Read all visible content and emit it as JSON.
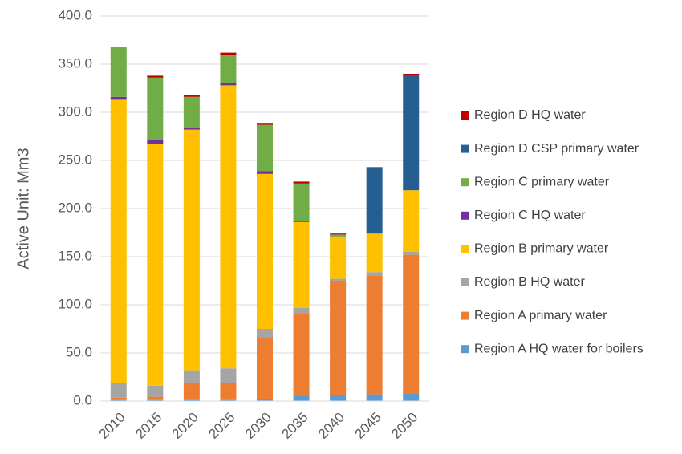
{
  "chart_data": {
    "type": "stacked_bar",
    "y_label": "Active Unit: Mm3",
    "categories": [
      "2010",
      "2015",
      "2020",
      "2025",
      "2030",
      "2035",
      "2040",
      "2045",
      "2050"
    ],
    "series": [
      {
        "name": "Region A HQ water for boilers",
        "color": "#5b9bd5",
        "values": [
          1,
          1,
          1,
          1,
          2,
          5,
          6,
          7,
          8
        ]
      },
      {
        "name": "Region A primary water",
        "color": "#ed7d31",
        "values": [
          2.5,
          3.5,
          18,
          18,
          63,
          85,
          119,
          123,
          144
        ]
      },
      {
        "name": "Region B HQ water",
        "color": "#a5a5a5",
        "values": [
          15.5,
          11.5,
          13,
          15,
          10,
          7,
          2,
          4,
          3
        ]
      },
      {
        "name": "Region B primary water",
        "color": "#ffc000",
        "values": [
          294,
          251,
          250,
          294,
          161,
          89,
          43,
          40,
          64
        ]
      },
      {
        "name": "Region C HQ water",
        "color": "#7030a0",
        "values": [
          3,
          4,
          2,
          2,
          3,
          1,
          1,
          0,
          0
        ]
      },
      {
        "name": "Region C primary water",
        "color": "#70ad47",
        "values": [
          52,
          65,
          32,
          30,
          48,
          39,
          2,
          0,
          0
        ]
      },
      {
        "name": "Region D CSP primary water",
        "color": "#255e91",
        "values": [
          0,
          0,
          0,
          0,
          0,
          0,
          0,
          68,
          120
        ]
      },
      {
        "name": "Region D HQ water",
        "color": "#c00000",
        "values": [
          0,
          2,
          2,
          2,
          2,
          2,
          1,
          1,
          1
        ]
      }
    ],
    "ylim": [
      0,
      400
    ],
    "yticks": [
      {
        "value": 0,
        "label": "0.0"
      },
      {
        "value": 50,
        "label": "50.0"
      },
      {
        "value": 100,
        "label": "100.0"
      },
      {
        "value": 150,
        "label": "150.0"
      },
      {
        "value": 200,
        "label": "200.0"
      },
      {
        "value": 250,
        "label": "250.0"
      },
      {
        "value": 300,
        "label": "300.0"
      },
      {
        "value": 350,
        "label": "350.0"
      },
      {
        "value": 400,
        "label": "400.0"
      }
    ],
    "grid": true,
    "legend": "right"
  }
}
